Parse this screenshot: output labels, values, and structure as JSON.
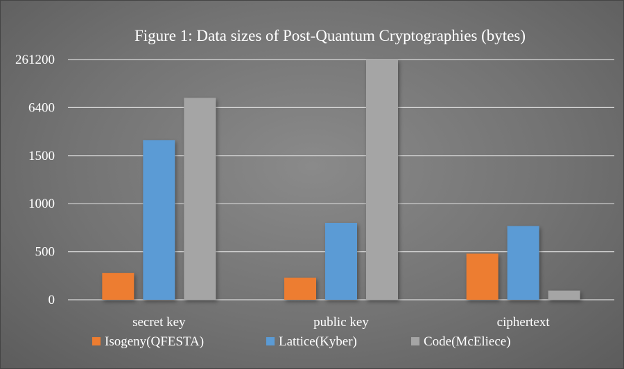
{
  "chart_data": {
    "type": "bar",
    "title": "Figure 1: Data sizes of Post-Quantum Cryptographies (bytes)",
    "xlabel": "",
    "ylabel": "",
    "y_tick_labels": [
      "0",
      "500",
      "1000",
      "1500",
      "6400",
      "261200"
    ],
    "ylim": [
      0,
      261200
    ],
    "grid": true,
    "legend_position": "bottom",
    "categories": [
      "secret key",
      "public key",
      "ciphertext"
    ],
    "series": [
      {
        "name": "Isogeny(QFESTA)",
        "color": "#ed7d31",
        "values": [
          280,
          230,
          480
        ]
      },
      {
        "name": "Lattice(Kyber)",
        "color": "#5b9bd5",
        "values": [
          2400,
          800,
          768
        ]
      },
      {
        "name": "Code(McEliece)",
        "color": "#a5a5a5",
        "values": [
          13608,
          261120,
          96
        ]
      }
    ]
  }
}
